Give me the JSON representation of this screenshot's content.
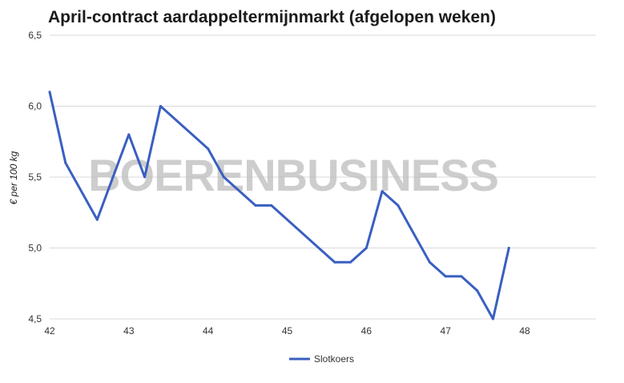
{
  "title": "April-contract aardappeltermijnmarkt (afgelopen weken)",
  "watermark": "BOERENBUSINESS",
  "chart_data": {
    "type": "line",
    "title": "April-contract aardappeltermijnmarkt (afgelopen weken)",
    "xlabel": "",
    "ylabel": "€ per 100 kg",
    "xlim": [
      42,
      48.9
    ],
    "ylim": [
      4.5,
      6.5
    ],
    "x_ticks": [
      "42",
      "43",
      "44",
      "45",
      "46",
      "47",
      "48"
    ],
    "y_ticks": [
      "6,5",
      "6,0",
      "5,5",
      "5,0",
      "4,5"
    ],
    "grid": true,
    "legend_position": "bottom-center",
    "series": [
      {
        "name": "Slotkoers",
        "color": "#3a5fc1",
        "x": [
          42.0,
          42.2,
          42.6,
          43.0,
          43.2,
          43.4,
          44.0,
          44.2,
          44.6,
          44.8,
          45.6,
          45.8,
          46.0,
          46.2,
          46.4,
          46.8,
          47.0,
          47.2,
          47.4,
          47.6,
          47.8
        ],
        "y": [
          6.1,
          5.6,
          5.2,
          5.8,
          5.5,
          6.0,
          5.7,
          5.5,
          5.3,
          5.3,
          4.9,
          4.9,
          5.0,
          5.4,
          5.3,
          4.9,
          4.8,
          4.8,
          4.7,
          4.5,
          5.0
        ]
      }
    ]
  }
}
